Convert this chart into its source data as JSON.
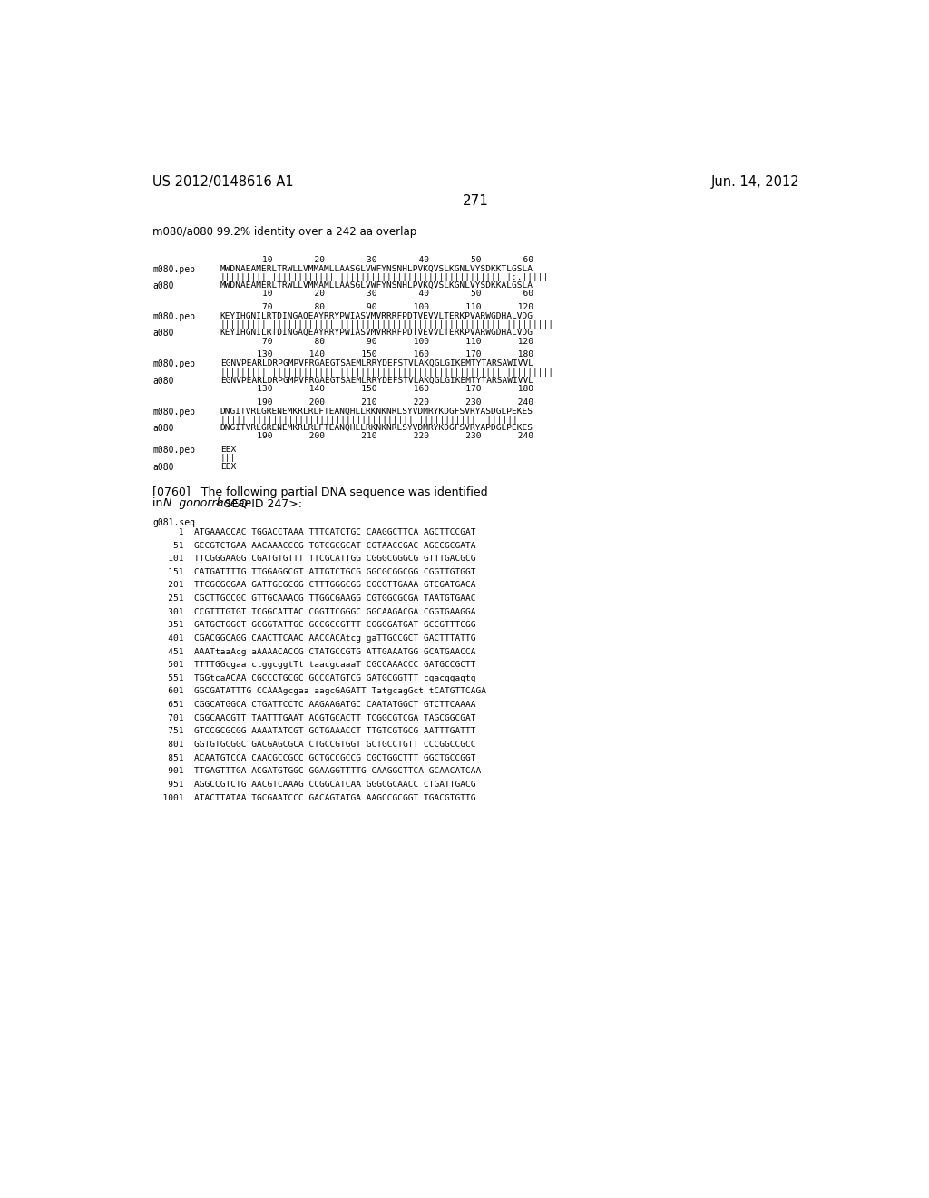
{
  "header_left": "US 2012/0148616 A1",
  "header_right": "Jun. 14, 2012",
  "page_number": "271",
  "background_color": "#ffffff",
  "text_color": "#000000",
  "subtitle": "m080/a080 99.2% identity over a 242 aa overlap",
  "alignment_blocks": [
    {
      "nums_top": "        10        20        30        40        50        60",
      "seq1_label": "m080.pep",
      "seq1": "MWDNAEAMERLTRWLLVMMAMLLAASGLVWFYNSNHLPVKQVSLKGNLVYSDKKTLGSLA",
      "match": "||||||||||||||||||||||||||||||||||||||||||||||||||||||||:.|||||",
      "seq2_label": "a080",
      "seq2": "MWDNAEAMERLTRWLLVMMAMLLAASGLVWFYNSNHLPVKQVSLKGNLVYSDKKALGSLA",
      "nums_bot": "        10        20        30        40        50        60"
    },
    {
      "nums_top": "        70        80        90       100       110       120",
      "seq1_label": "m080.pep",
      "seq1": "KEYIHGNILRTDINGAQEAYRRYPWIASVMVRRRFPDTVEVVLTERKPVARWGDHALVDG",
      "match": "||||||||||||||||||||||||||||||||||||||||||||||||||||||||||||||||",
      "seq2_label": "a080",
      "seq2": "KEYIHGNILRTDINGAQEAYRRYPWIASVMVRRRFPDTVEVVLTERKPVARWGDHALVDG",
      "nums_bot": "        70        80        90       100       110       120"
    },
    {
      "nums_top": "       130       140       150       160       170       180",
      "seq1_label": "m080.pep",
      "seq1": "EGNVPEARLDRPGMPVFRGAEGTSAEMLRRYDEFSTVLAKQGLGIKEMTYTARSAWIVVL",
      "match": "||||||||||||||||||||||||||||||||||||||||||||||||||||||||||||||||",
      "seq2_label": "a080",
      "seq2": "EGNVPEARLDRPGMPVFRGAEGTSAEMLRRYDEFSTVLAKQGLGIKEMTYTARSAWIVVL",
      "nums_bot": "       130       140       150       160       170       180"
    },
    {
      "nums_top": "       190       200       210       220       230       240",
      "seq1_label": "m080.pep",
      "seq1": "DNGITVRLGRENEMKRLRLFTEANQHLLRKNKNRLSYVDMRYKDGFSVRYASDGLPEKES",
      "match": "||||||||||||||||||||||||||||||||||||||||||||||||| |||||||",
      "seq2_label": "a080",
      "seq2": "DNGITVRLGRENEMKRLRLFTEANQHLLRKNKNRLSYVDMRYKDGFSVRYAPDGLPEKES",
      "nums_bot": "       190       200       210       220       230       240"
    },
    {
      "nums_top": "",
      "seq1_label": "m080.pep",
      "seq1": "EEX",
      "match": "|||",
      "seq2_label": "a080",
      "seq2": "EEX",
      "nums_bot": ""
    }
  ],
  "para_prefix": "[0760]   The following partial DNA sequence was identified",
  "para_line2_before": "in ",
  "para_line2_italic": "N. gonorrhoeae",
  "para_line2_after": " <SEQ ID 247>:",
  "dna_label": "g081.seq",
  "dna_lines": [
    "     1  ATGAAACCAC TGGACCTAAA TTTCATCTGC CAAGGCTTCA AGCTTCCGAT",
    "    51  GCCGTCTGAA AACAAACCCG TGTCGCGCAT CGTAACCGAC AGCCGCGATA",
    "   101  TTCGGGAAGG CGATGTGTTT TTCGCATTGG CGGGCGGGCG GTTTGACGCG",
    "   151  CATGATTTTG TTGGAGGCGT ATTGTCTGCG GGCGCGGCGG CGGTTGTGGT",
    "   201  TTCGCGCGAA GATTGCGCGG CTTTGGGCGG CGCGTTGAAA GTCGATGACA",
    "   251  CGCTTGCCGC GTTGCAAACG TTGGCGAAGG CGTGGCGCGA TAATGTGAAC",
    "   301  CCGTTTGTGT TCGGCATTAC CGGTTCGGGC GGCAAGACGA CGGTGAAGGA",
    "   351  GATGCTGGCT GCGGTATTGC GCCGCCGTTT CGGCGATGAT GCCGTTTCGG",
    "   401  CGACGGCAGG CAACTTCAAC AACCACAtcg gaTTGCCGCT GACTTTATTG",
    "   451  AAATtaaAcg aAAAACACCG CTATGCCGTG ATTGAAATGG GCATGAACCA",
    "   501  TTTTGGcgaa ctggcggtTt taacgcaaaT CGCCAAACCC GATGCCGCTT",
    "   551  TGGtcaACAA CGCCCTGCGC GCCCATGTCG GATGCGGTTT cgacggagtg",
    "   601  GGCGATATTTG CCAAAgcgaa aagcGAGATT TatgcagGct tCATGTTCAGA",
    "   651  CGGCATGGCA CTGATTCCTC AAGAAGATGC CAATATGGCT GTCTTCAAAA",
    "   701  CGGCAACGTT TAATTTGAAT ACGTGCACTT TCGGCGTCGA TAGCGGCGAT",
    "   751  GTCCGCGCGG AAAATATCGT GCTGAAACCT TTGTCGTGCG AATTTGATTT",
    "   801  GGTGTGCGGC GACGAGCGCA CTGCCGTGGT GCTGCCTGTT CCCGGCCGCC",
    "   851  ACAATGTCCA CAACGCCGCC GCTGCCGCCG CGCTGGCTTT GGCTGCCGGT",
    "   901  TTGAGTTTGA ACGATGTGGC GGAAGGTTTTG CAAGGCTTCA GCAACATCAA",
    "   951  AGGCCGTCTG AACGTCAAAG CCGGCATCAA GGGCGCAACC CTGATTGACG",
    "  1001  ATACTTATAA TGCGAATCCC GACAGTATGA AAGCCGCGGT TGACGTGTTG"
  ]
}
